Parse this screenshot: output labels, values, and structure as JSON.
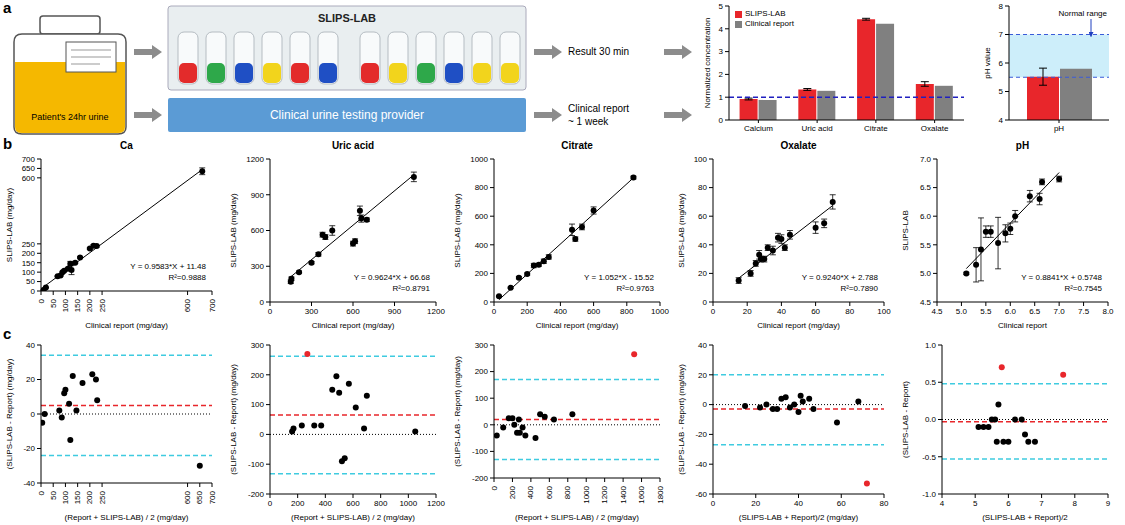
{
  "panel_labels": [
    "a",
    "b",
    "c"
  ],
  "diagram": {
    "jar_label": "Patient's 24hr urine",
    "device_label": "SLIPS-LAB",
    "provider_label": "Clinical urine testing provider",
    "fast_result": "Result 30 min",
    "slow_result": [
      "Clinical report",
      "~ 1 week"
    ]
  },
  "chart_data": [
    {
      "type": "bar",
      "categories": [
        "Calcium",
        "Uric acid",
        "Citrate",
        "Oxalate"
      ],
      "series": [
        {
          "name": "SLIPS-LAB",
          "color": "#e8262b",
          "values": [
            0.92,
            1.34,
            4.42,
            1.58
          ],
          "errors": [
            0.04,
            0.04,
            0.04,
            0.1
          ]
        },
        {
          "name": "Clinical report",
          "color": "#808080",
          "values": [
            0.88,
            1.28,
            4.22,
            1.5
          ]
        }
      ],
      "ylabel": "Normalized concentration",
      "ylim": [
        0,
        5
      ],
      "yticks": [
        0,
        1,
        2,
        3,
        4,
        5
      ],
      "reference_line": 1,
      "legend": "top-left"
    },
    {
      "type": "bar",
      "categories": [
        "pH"
      ],
      "series": [
        {
          "color": "#e8262b",
          "values": [
            5.52
          ],
          "errors": [
            0.3
          ]
        },
        {
          "color": "#808080",
          "values": [
            5.8
          ]
        }
      ],
      "ylabel": "pH value",
      "ylim": [
        4,
        8
      ],
      "yticks": [
        4,
        5,
        6,
        7,
        8
      ],
      "normal_range": [
        5.5,
        7
      ],
      "annotations": [
        "Normal range"
      ]
    },
    {
      "type": "scatter",
      "title": "Ca",
      "xlabel": "Clinical report (mg/day)",
      "ylabel": "SLIPS-LAB (mg/day)",
      "xlim": [
        0,
        700
      ],
      "xticks": [
        0,
        50,
        100,
        150,
        200,
        250,
        600,
        700
      ],
      "ylim": [
        0,
        700
      ],
      "yticks": [
        0,
        50,
        100,
        150,
        200,
        250,
        600,
        650,
        700
      ],
      "x": [
        10,
        20,
        68,
        80,
        88,
        95,
        110,
        120,
        125,
        140,
        160,
        200,
        215,
        228,
        660
      ],
      "values": [
        5,
        18,
        78,
        82,
        100,
        108,
        118,
        145,
        112,
        150,
        178,
        225,
        240,
        238,
        635
      ],
      "errors": [
        2,
        2,
        3,
        3,
        4,
        3,
        4,
        12,
        25,
        4,
        4,
        5,
        6,
        5,
        18
      ],
      "color": "#000000",
      "fit": {
        "slope": 0.9583,
        "intercept": 11.48
      },
      "annotations": [
        "Y = 0.9583*X + 11.48",
        "R²=0.9888"
      ]
    },
    {
      "type": "scatter",
      "title": "Uric acid",
      "xlabel": "Clinical report (mg/day)",
      "ylabel": "SLIPS-LAB (mg/day)",
      "xlim": [
        0,
        1200
      ],
      "xticks": [
        0,
        300,
        600,
        900,
        1200
      ],
      "ylim": [
        0,
        1200
      ],
      "yticks": [
        0,
        300,
        600,
        900,
        1200
      ],
      "x": [
        150,
        155,
        210,
        300,
        350,
        380,
        400,
        450,
        600,
        615,
        650,
        660,
        700,
        1040
      ],
      "values": [
        170,
        195,
        250,
        330,
        400,
        565,
        545,
        600,
        490,
        510,
        765,
        700,
        690,
        1050
      ],
      "errors": [
        15,
        15,
        10,
        10,
        15,
        20,
        20,
        40,
        20,
        20,
        40,
        30,
        15,
        40
      ],
      "color": "#000000",
      "fit": {
        "slope": 0.9624,
        "intercept": 66.68
      },
      "annotations": [
        "Y = 0.9624*X + 66.68",
        "R²=0.8791"
      ]
    },
    {
      "type": "scatter",
      "title": "Citrate",
      "xlabel": "Clinical report (mg/day)",
      "ylabel": "SLIPS-LAB (mg/day)",
      "xlim": [
        0,
        1000
      ],
      "xticks": [
        0,
        200,
        400,
        600,
        800,
        1000
      ],
      "ylim": [
        0,
        1000
      ],
      "yticks": [
        0,
        200,
        400,
        600,
        800,
        1000
      ],
      "x": [
        30,
        100,
        150,
        200,
        240,
        270,
        300,
        330,
        470,
        490,
        530,
        600,
        840
      ],
      "values": [
        40,
        100,
        170,
        195,
        255,
        260,
        285,
        315,
        505,
        440,
        525,
        640,
        870
      ],
      "errors": [
        5,
        5,
        8,
        8,
        15,
        10,
        15,
        15,
        40,
        15,
        20,
        25,
        10
      ],
      "color": "#000000",
      "fit": {
        "slope": 1.052,
        "intercept": -15.52
      },
      "annotations": [
        "Y = 1.052*X - 15.52",
        "R²=0.9763"
      ]
    },
    {
      "type": "scatter",
      "title": "Oxalate",
      "xlabel": "Clinical report (mg/day)",
      "ylabel": "SLIPS-LAB (mg/day)",
      "xlim": [
        0,
        100
      ],
      "xticks": [
        0,
        20,
        40,
        60,
        80,
        100
      ],
      "ylim": [
        0,
        100
      ],
      "yticks": [
        0,
        20,
        40,
        60,
        80,
        100
      ],
      "x": [
        15,
        22,
        25,
        27,
        28,
        30,
        32,
        35,
        38,
        40,
        42,
        45,
        60,
        65,
        70
      ],
      "values": [
        15,
        20,
        27,
        33,
        30,
        30,
        38,
        36,
        45,
        44,
        38,
        47,
        52,
        55,
        70
      ],
      "errors": [
        2,
        2,
        2,
        3,
        2,
        2,
        2,
        3,
        3,
        3,
        2,
        3,
        4,
        3,
        5
      ],
      "color": "#000000",
      "fit": {
        "slope": 0.924,
        "intercept": 2.788
      },
      "annotations": [
        "Y = 0.9240*X + 2.788",
        "R²=0.7890"
      ]
    },
    {
      "type": "scatter",
      "title": "pH",
      "xlabel": "Clinical report",
      "ylabel": "SLIPS-LAB",
      "xlim": [
        4.5,
        8
      ],
      "xticks": [
        4.5,
        {
          "value": 5,
          "label": "5.0"
        },
        5.5,
        {
          "value": 6,
          "label": "6.0"
        },
        6.5,
        {
          "value": 7,
          "label": "7.0"
        },
        7.5,
        {
          "value": 8,
          "label": "8.0"
        }
      ],
      "ylim": [
        4.5,
        7
      ],
      "yticks": [
        4.5,
        {
          "value": 5,
          "label": "5.0"
        },
        5.5,
        {
          "value": 6,
          "label": "6.0"
        },
        6.5,
        {
          "value": 7,
          "label": "7.0"
        }
      ],
      "x": [
        5.1,
        5.3,
        5.4,
        5.5,
        5.6,
        5.75,
        5.9,
        6.0,
        6.1,
        6.4,
        6.6,
        6.65,
        7.0
      ],
      "values": [
        5.0,
        5.15,
        5.42,
        5.73,
        5.73,
        5.53,
        5.7,
        5.78,
        6.0,
        6.35,
        6.3,
        6.6,
        6.65
      ],
      "errors": [
        0.02,
        0.3,
        0.55,
        0.1,
        0.1,
        0.45,
        0.15,
        0.1,
        0.1,
        0.1,
        0.1,
        0.05,
        0.05
      ],
      "color": "#000000",
      "fit": {
        "slope": 0.8841,
        "intercept": 0.5748
      },
      "annotations": [
        "Y = 0.8841*X + 0.5748",
        "R²=0.7545"
      ]
    },
    {
      "type": "scatter",
      "xlabel": "(Report + SLIPS-LAB) / 2 (mg/day)",
      "ylabel": "(SLIPS-LAB - Report) (mg/day)",
      "xlim": [
        0,
        700
      ],
      "xticks": [
        0,
        50,
        100,
        150,
        200,
        250,
        600,
        650,
        700
      ],
      "ylim": [
        -40,
        40
      ],
      "yticks": [
        -40,
        -20,
        0,
        20,
        40
      ],
      "x": [
        5,
        15,
        75,
        85,
        95,
        100,
        115,
        120,
        130,
        145,
        170,
        210,
        225,
        230,
        650
      ],
      "values": [
        -5,
        0,
        2,
        -2,
        12,
        14,
        6,
        -15,
        22,
        2,
        18,
        23,
        20,
        8,
        -30
      ],
      "colors": [
        "#000000",
        "#000000",
        "#000000",
        "#000000",
        "#000000",
        "#000000",
        "#000000",
        "#000000",
        "#000000",
        "#000000",
        "#000000",
        "#000000",
        "#000000",
        "#000000",
        "#000000"
      ],
      "mean_difference": 5,
      "limits_of_agreement": [
        34,
        -24
      ]
    },
    {
      "type": "scatter",
      "xlabel": "(Report + SLIPS-LAB) / 2 (mg/day)",
      "ylabel": "(SLIPS-LAB - Report) (mg/day)",
      "xlim": [
        0,
        1200
      ],
      "xticks": [
        0,
        200,
        400,
        600,
        800,
        1000,
        1200
      ],
      "ylim": [
        -200,
        300
      ],
      "yticks": [
        -200,
        -100,
        0,
        100,
        200,
        300
      ],
      "x": [
        160,
        170,
        230,
        270,
        320,
        370,
        450,
        480,
        500,
        520,
        540,
        570,
        620,
        680,
        700,
        1050
      ],
      "values": [
        10,
        20,
        30,
        270,
        30,
        30,
        150,
        195,
        140,
        -90,
        -80,
        170,
        90,
        20,
        130,
        10
      ],
      "colors": [
        "#000000",
        "#000000",
        "#000000",
        "#e8262b",
        "#000000",
        "#000000",
        "#000000",
        "#000000",
        "#000000",
        "#000000",
        "#000000",
        "#000000",
        "#000000",
        "#000000",
        "#000000",
        "#000000"
      ],
      "mean_difference": 65,
      "limits_of_agreement": [
        262,
        -132
      ]
    },
    {
      "type": "scatter",
      "xlabel": "(Report + SLIPS-LAB) / 2 (mg/day)",
      "ylabel": "(SLIPS-LAB - Report) (mg/day)",
      "xlim": [
        0,
        1800
      ],
      "xticks": [
        0,
        200,
        400,
        600,
        800,
        1000,
        1200,
        1400,
        1600,
        1800
      ],
      "ylim": [
        -200,
        300
      ],
      "yticks": [
        -200,
        -100,
        0,
        100,
        200,
        300
      ],
      "x": [
        30,
        100,
        160,
        200,
        220,
        250,
        270,
        280,
        310,
        340,
        450,
        500,
        550,
        650,
        850,
        1520
      ],
      "values": [
        -40,
        -10,
        25,
        25,
        0,
        -30,
        20,
        -30,
        -10,
        -40,
        -50,
        40,
        30,
        20,
        40,
        265
      ],
      "colors": [
        "#000000",
        "#000000",
        "#000000",
        "#000000",
        "#000000",
        "#000000",
        "#000000",
        "#000000",
        "#000000",
        "#000000",
        "#000000",
        "#000000",
        "#000000",
        "#000000",
        "#000000",
        "#e8262b"
      ],
      "mean_difference": 20,
      "limits_of_agreement": [
        170,
        -130
      ]
    },
    {
      "type": "scatter",
      "xlabel": "(SLIPS-LAB + Report)/2 (mg/day)",
      "ylabel": "(SLIPS-LAB - Report) (mg/day)",
      "xlim": [
        0,
        80
      ],
      "xticks": [
        0,
        20,
        40,
        60,
        80
      ],
      "ylim": [
        -60,
        40
      ],
      "yticks": [
        -60,
        -40,
        -20,
        0,
        20,
        40
      ],
      "x": [
        15,
        22,
        25,
        28,
        30,
        32,
        34,
        36,
        38,
        40,
        41,
        42,
        45,
        47,
        58,
        68,
        72
      ],
      "values": [
        -1,
        -2,
        0,
        -3,
        -3,
        4,
        5,
        -2,
        0,
        -5,
        6,
        2,
        4,
        -3,
        -12,
        2,
        -53
      ],
      "colors": [
        "#000000",
        "#000000",
        "#000000",
        "#000000",
        "#000000",
        "#000000",
        "#000000",
        "#000000",
        "#000000",
        "#000000",
        "#000000",
        "#000000",
        "#000000",
        "#000000",
        "#000000",
        "#000000",
        "#e8262b"
      ],
      "mean_difference": -3,
      "limits_of_agreement": [
        20,
        -27
      ]
    },
    {
      "type": "scatter",
      "xlabel": "(SLIPS-LAB + Report)/2",
      "ylabel": "(SLIPS-LAB - Report)",
      "xlim": [
        4,
        9
      ],
      "xticks": [
        4,
        5,
        6,
        7,
        8,
        9
      ],
      "ylim": [
        -1,
        1
      ],
      "yticks": [
        {
          "value": -1,
          "label": "-1.0"
        },
        -0.5,
        {
          "value": 0,
          "label": "0.0"
        },
        0.5,
        {
          "value": 1,
          "label": "1.0"
        }
      ],
      "x": [
        5.1,
        5.25,
        5.4,
        5.5,
        5.6,
        5.65,
        5.7,
        5.8,
        5.85,
        6.0,
        6.2,
        6.4,
        6.5,
        6.6,
        6.8,
        7.65
      ],
      "values": [
        -0.1,
        -0.1,
        -0.1,
        0,
        0,
        -0.3,
        0.2,
        0.7,
        -0.3,
        -0.3,
        0,
        0,
        -0.2,
        -0.3,
        -0.3,
        0.6
      ],
      "colors": [
        "#000000",
        "#000000",
        "#000000",
        "#000000",
        "#000000",
        "#000000",
        "#000000",
        "#e8262b",
        "#000000",
        "#000000",
        "#000000",
        "#000000",
        "#000000",
        "#000000",
        "#000000",
        "#e8262b"
      ],
      "mean_difference": -0.03,
      "limits_of_agreement": [
        0.48,
        -0.53
      ]
    }
  ]
}
